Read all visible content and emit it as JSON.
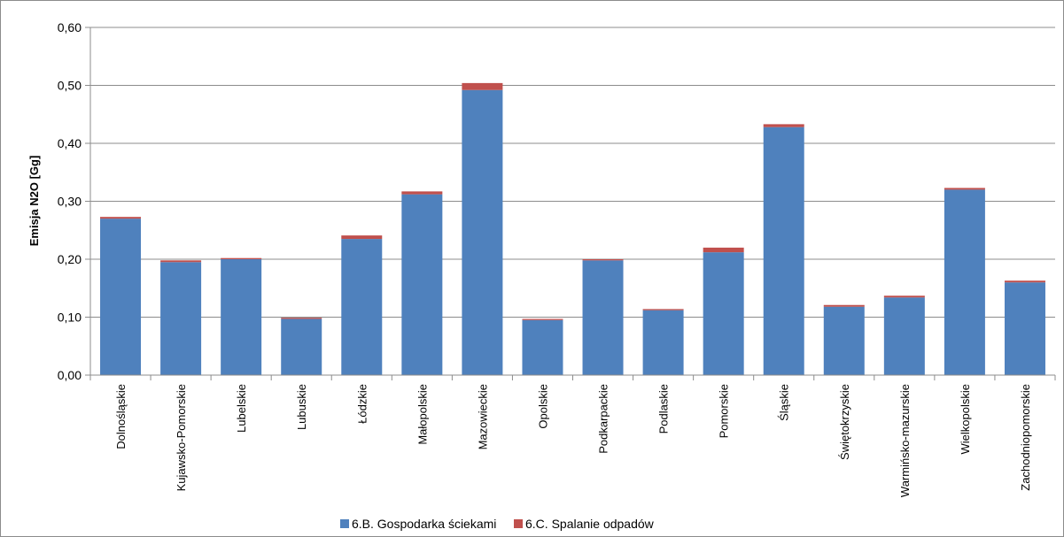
{
  "chart_data": {
    "type": "bar",
    "stacked": true,
    "title": "",
    "xlabel": "",
    "ylabel": "Emisja N2O [Gg]",
    "ylim": [
      0,
      0.6
    ],
    "yticks": [
      "0,00",
      "0,10",
      "0,20",
      "0,30",
      "0,40",
      "0,50",
      "0,60"
    ],
    "grid": true,
    "legend_position": "bottom",
    "categories": [
      "Dolnośląskie",
      "Kujawsko-Pomorskie",
      "Lubelskie",
      "Lubuskie",
      "Łódzkie",
      "Małopolskie",
      "Mazowieckie",
      "Opolskie",
      "Podkarpackie",
      "Podlaskie",
      "Pomorskie",
      "Śląskie",
      "Świętokrzyskie",
      "Warmińsko-mazurskie",
      "Wielkopolskie",
      "Zachodniopomorskie"
    ],
    "series": [
      {
        "name": "6.B.  Gospodarka ściekami",
        "color": "#4f81bd",
        "values": [
          0.27,
          0.195,
          0.2,
          0.097,
          0.235,
          0.312,
          0.492,
          0.095,
          0.198,
          0.112,
          0.212,
          0.428,
          0.118,
          0.134,
          0.32,
          0.16
        ]
      },
      {
        "name": "6.C.  Spalanie odpadów",
        "color": "#c0504d",
        "values": [
          0.003,
          0.003,
          0.002,
          0.002,
          0.006,
          0.005,
          0.012,
          0.002,
          0.002,
          0.002,
          0.008,
          0.005,
          0.003,
          0.003,
          0.003,
          0.003
        ]
      }
    ]
  }
}
